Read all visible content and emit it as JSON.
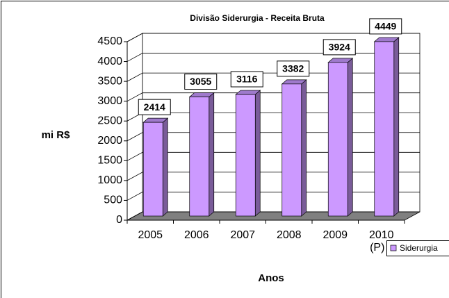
{
  "chart_data": {
    "type": "bar",
    "title": "Divisão Siderurgia - Receita Bruta",
    "categories": [
      "2005",
      "2006",
      "2007",
      "2008",
      "2009",
      "2010\n(P)"
    ],
    "series": [
      {
        "name": "Siderurgia",
        "color": "#cc99ff",
        "values": [
          2414,
          3055,
          3116,
          3382,
          3924,
          4449
        ]
      }
    ],
    "ylim": [
      0,
      4500
    ],
    "yticks": [
      0,
      500,
      1000,
      1500,
      2000,
      2500,
      3000,
      3500,
      4000,
      4500
    ],
    "y_label": "mi R$",
    "x_label": "Anos",
    "grid": true,
    "legend": "right"
  }
}
